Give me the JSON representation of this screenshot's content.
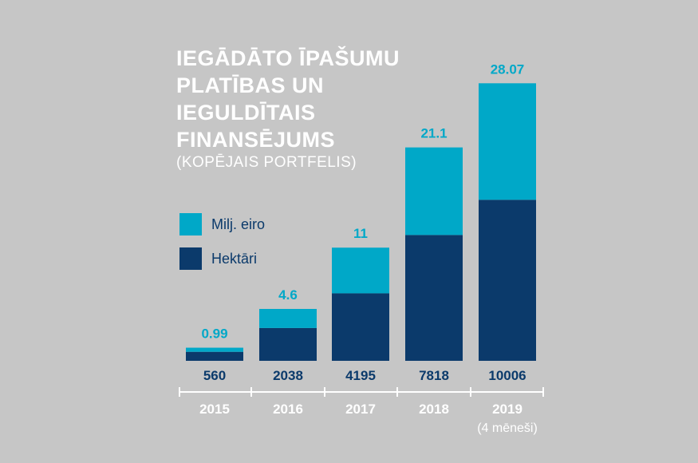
{
  "title_lines": [
    "IEGĀDĀTO ĪPAŠUMU",
    "PLATĪBAS UN",
    "IEGULDĪTAIS",
    "FINANSĒJUMS"
  ],
  "subtitle": "(KOPĒJAIS PORTFELIS)",
  "legend": [
    {
      "label": "Milj. eiro",
      "color": "#00a8c8"
    },
    {
      "label": "Hektāri",
      "color": "#0b3a6b"
    }
  ],
  "chart_data": {
    "type": "bar",
    "stacked": true,
    "categories": [
      "2015",
      "2016",
      "2017",
      "2018",
      "2019"
    ],
    "category_notes": [
      "",
      "",
      "",
      "",
      "(4 mēneši)"
    ],
    "series": [
      {
        "name": "Hektāri",
        "values": [
          560,
          2038,
          4195,
          7818,
          10006
        ],
        "color": "#0b3a6b"
      },
      {
        "name": "Milj. eiro",
        "values": [
          0.99,
          4.6,
          11,
          21.1,
          28.07
        ],
        "color": "#00a8c8"
      }
    ],
    "grid": false,
    "legend_position": "left"
  }
}
